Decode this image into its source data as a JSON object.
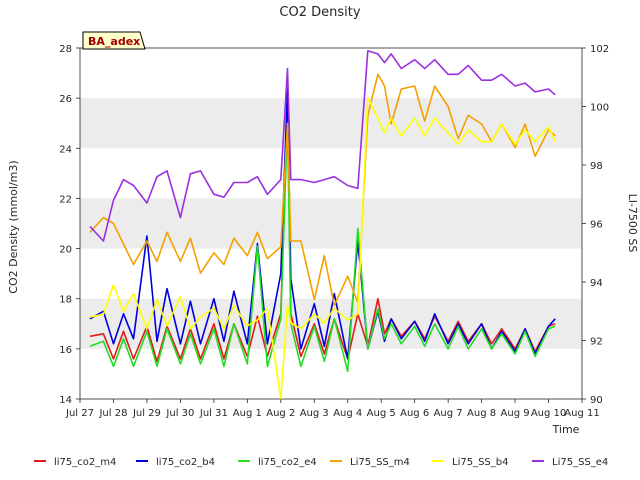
{
  "chart_data": {
    "type": "line",
    "title": "CO2 Density",
    "xlabel": "Time",
    "ylabel": "CO2 Density (mmol/m3)",
    "ylabel_right": "LI-7500 SS",
    "badge": "BA_adex",
    "xlim": [
      "Jul 27",
      "Aug 11"
    ],
    "ylim": [
      14,
      28
    ],
    "ylim_right": [
      90,
      102
    ],
    "x_ticks": [
      "Jul 27",
      "Jul 28",
      "Jul 29",
      "Jul 30",
      "Jul 31",
      "Aug 1",
      "Aug 2",
      "Aug 3",
      "Aug 4",
      "Aug 5",
      "Aug 6",
      "Aug 7",
      "Aug 8",
      "Aug 9",
      "Aug 10",
      "Aug 11"
    ],
    "y_ticks": [
      14,
      16,
      18,
      20,
      22,
      24,
      26,
      28
    ],
    "y_ticks_right": [
      90,
      92,
      94,
      96,
      98,
      100,
      102
    ],
    "grid_bands": true,
    "legend_position": "bottom",
    "x_day_offsets": [
      0.3,
      0.7,
      1.0,
      1.3,
      1.6,
      2.0,
      2.3,
      2.6,
      3.0,
      3.3,
      3.6,
      4.0,
      4.3,
      4.6,
      5.0,
      5.3,
      5.6,
      6.0,
      6.2,
      6.3,
      6.6,
      7.0,
      7.3,
      7.6,
      8.0,
      8.3,
      8.6,
      8.9,
      9.1,
      9.3,
      9.6,
      10.0,
      10.3,
      10.6,
      11.0,
      11.3,
      11.6,
      12.0,
      12.3,
      12.6,
      13.0,
      13.3,
      13.6,
      14.0,
      14.2
    ],
    "series": [
      {
        "name": "li75_co2_m4",
        "axis": "left",
        "color": "#e31a1c",
        "values": [
          16.5,
          16.6,
          15.6,
          16.7,
          15.6,
          16.9,
          15.5,
          16.9,
          15.6,
          16.8,
          15.6,
          17.0,
          15.6,
          17.0,
          15.7,
          17.3,
          15.7,
          17.4,
          26.0,
          17.4,
          15.7,
          17.0,
          15.8,
          17.2,
          15.6,
          17.4,
          16.1,
          18.0,
          16.6,
          17.2,
          16.5,
          17.1,
          16.4,
          17.3,
          16.3,
          17.1,
          16.3,
          17.0,
          16.2,
          16.8,
          16.0,
          16.8,
          15.9,
          16.9,
          17.0
        ]
      },
      {
        "name": "li75_co2_b4",
        "axis": "left",
        "color": "#0000dd",
        "values": [
          17.2,
          17.5,
          16.2,
          17.4,
          16.4,
          20.5,
          16.3,
          18.4,
          16.2,
          17.9,
          16.2,
          18.0,
          16.3,
          18.3,
          16.2,
          20.2,
          16.2,
          19.0,
          26.4,
          18.8,
          16.0,
          17.8,
          16.1,
          18.2,
          15.6,
          20.3,
          16.0,
          17.5,
          16.3,
          17.2,
          16.4,
          17.1,
          16.3,
          17.4,
          16.2,
          17.0,
          16.2,
          17.0,
          16.0,
          16.7,
          15.9,
          16.8,
          15.8,
          16.9,
          17.2
        ]
      },
      {
        "name": "li75_co2_e4",
        "axis": "left",
        "color": "#22dd22",
        "values": [
          16.1,
          16.3,
          15.3,
          16.4,
          15.3,
          16.7,
          15.3,
          16.8,
          15.4,
          16.6,
          15.4,
          16.8,
          15.3,
          17.0,
          15.4,
          20.1,
          15.3,
          17.2,
          25.0,
          17.0,
          15.3,
          16.9,
          15.5,
          17.2,
          15.1,
          20.8,
          16.0,
          17.6,
          16.4,
          17.0,
          16.2,
          16.9,
          16.1,
          17.0,
          16.0,
          16.9,
          16.0,
          16.8,
          16.0,
          16.6,
          15.8,
          16.7,
          15.7,
          16.8,
          16.9
        ]
      },
      {
        "name": "Li75_SS_m4",
        "axis": "right",
        "color": "#f5a000",
        "values": [
          95.7,
          96.2,
          96.0,
          95.3,
          94.6,
          95.4,
          94.7,
          95.7,
          94.7,
          95.5,
          94.3,
          95.0,
          94.6,
          95.5,
          94.9,
          95.7,
          94.8,
          95.2,
          99.4,
          95.4,
          95.4,
          93.4,
          94.9,
          93.2,
          94.2,
          93.3,
          99.7,
          101.1,
          100.7,
          99.4,
          100.6,
          100.7,
          99.5,
          100.7,
          100.0,
          98.9,
          99.7,
          99.4,
          98.8,
          99.4,
          98.6,
          99.4,
          98.3,
          99.2,
          99.0
        ]
      },
      {
        "name": "Li75_SS_b4",
        "axis": "right",
        "color": "#ffff00",
        "values": [
          92.8,
          92.9,
          93.9,
          93.0,
          93.6,
          92.4,
          93.4,
          92.5,
          93.5,
          92.4,
          92.8,
          93.1,
          92.4,
          93.2,
          92.5,
          92.7,
          93.1,
          90.0,
          93.2,
          92.6,
          92.4,
          92.9,
          92.6,
          93.1,
          92.7,
          92.9,
          100.3,
          99.6,
          99.1,
          99.6,
          99.0,
          99.6,
          99.0,
          99.6,
          99.1,
          98.7,
          99.2,
          98.8,
          98.8,
          99.4,
          98.7,
          99.2,
          98.8,
          99.3,
          98.8
        ]
      },
      {
        "name": "Li75_SS_e4",
        "axis": "right",
        "color": "#9b30e0",
        "values": [
          95.9,
          95.4,
          96.8,
          97.5,
          97.3,
          96.7,
          97.6,
          97.8,
          96.2,
          97.7,
          97.8,
          97.0,
          96.9,
          97.4,
          97.4,
          97.6,
          97.0,
          97.5,
          101.3,
          97.5,
          97.5,
          97.4,
          97.5,
          97.6,
          97.3,
          97.2,
          101.9,
          101.8,
          101.5,
          101.8,
          101.3,
          101.6,
          101.3,
          101.6,
          101.1,
          101.1,
          101.4,
          100.9,
          100.9,
          101.1,
          100.7,
          100.8,
          100.5,
          100.6,
          100.4
        ]
      }
    ]
  }
}
